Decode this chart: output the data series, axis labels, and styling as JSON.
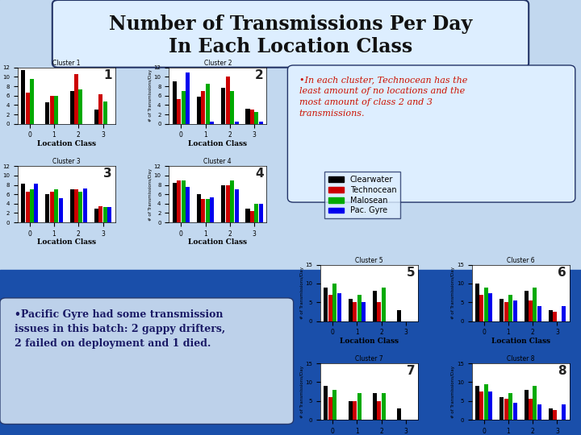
{
  "title_line1": "Number of Transmissions Per Day",
  "title_line2": "In Each Location Class",
  "bar_colors": [
    "#000000",
    "#cc0000",
    "#00aa00",
    "#0000ee"
  ],
  "legend_labels": [
    "Clearwater",
    "Technocean",
    "Malosean",
    "Pac. Gyre"
  ],
  "xlabel": "Location Class",
  "ylabel": "# of Transmissions/Day",
  "clusters": [
    {
      "title": "Cluster 1",
      "number": "1",
      "ylim": [
        0,
        12
      ],
      "yticks": [
        0,
        2,
        4,
        6,
        8,
        10,
        12
      ],
      "data": [
        [
          11.5,
          4.5,
          7.0,
          3.0
        ],
        [
          6.7,
          6.0,
          10.5,
          6.3
        ],
        [
          9.5,
          6.0,
          7.3,
          4.7
        ],
        [
          null,
          null,
          null,
          null
        ]
      ]
    },
    {
      "title": "Cluster 2",
      "number": "2",
      "ylim": [
        0,
        12
      ],
      "yticks": [
        0,
        2,
        4,
        6,
        8,
        10,
        12
      ],
      "data": [
        [
          9.0,
          5.7,
          7.7,
          3.2
        ],
        [
          5.3,
          7.0,
          10.0,
          3.0
        ],
        [
          7.0,
          8.5,
          7.0,
          2.5
        ],
        [
          11.0,
          0.5,
          0.5,
          0.5
        ]
      ]
    },
    {
      "title": "Cluster 3",
      "number": "3",
      "ylim": [
        0,
        12
      ],
      "yticks": [
        0,
        2,
        4,
        6,
        8,
        10,
        12
      ],
      "data": [
        [
          8.3,
          6.0,
          7.0,
          3.0
        ],
        [
          6.5,
          6.5,
          7.0,
          3.5
        ],
        [
          7.0,
          7.0,
          6.5,
          3.2
        ],
        [
          8.2,
          5.2,
          7.2,
          3.2
        ]
      ]
    },
    {
      "title": "Cluster 4",
      "number": "4",
      "ylim": [
        0,
        12
      ],
      "yticks": [
        0,
        2,
        4,
        6,
        8,
        10,
        12
      ],
      "data": [
        [
          8.5,
          6.0,
          8.0,
          3.0
        ],
        [
          9.0,
          5.0,
          8.0,
          2.5
        ],
        [
          9.0,
          5.0,
          9.0,
          4.0
        ],
        [
          7.5,
          5.3,
          7.0,
          4.0
        ]
      ]
    },
    {
      "title": "Cluster 5",
      "number": "5",
      "ylim": [
        0,
        15
      ],
      "yticks": [
        0,
        5,
        10,
        15
      ],
      "data": [
        [
          9.0,
          6.0,
          8.0,
          3.0
        ],
        [
          7.0,
          5.0,
          5.0,
          null
        ],
        [
          10.0,
          7.0,
          9.0,
          null
        ],
        [
          7.5,
          5.0,
          null,
          null
        ]
      ]
    },
    {
      "title": "Cluster 6",
      "number": "6",
      "ylim": [
        0,
        15
      ],
      "yticks": [
        0,
        5,
        10,
        15
      ],
      "data": [
        [
          10.0,
          6.0,
          8.0,
          3.0
        ],
        [
          7.0,
          5.0,
          5.5,
          2.5
        ],
        [
          9.0,
          7.0,
          9.0,
          null
        ],
        [
          7.5,
          5.5,
          4.0,
          4.0
        ]
      ]
    },
    {
      "title": "Cluster 7",
      "number": "7",
      "ylim": [
        0,
        15
      ],
      "yticks": [
        0,
        5,
        10,
        15
      ],
      "data": [
        [
          9.0,
          5.0,
          7.0,
          3.0
        ],
        [
          6.0,
          5.0,
          5.0,
          null
        ],
        [
          8.0,
          7.0,
          7.0,
          null
        ],
        [
          null,
          null,
          null,
          null
        ]
      ]
    },
    {
      "title": "Cluster 8",
      "number": "8",
      "ylim": [
        0,
        15
      ],
      "yticks": [
        0,
        5,
        10,
        15
      ],
      "data": [
        [
          9.0,
          6.0,
          8.0,
          3.0
        ],
        [
          7.5,
          5.5,
          5.5,
          2.5
        ],
        [
          9.5,
          7.0,
          9.0,
          null
        ],
        [
          7.5,
          4.5,
          4.0,
          4.0
        ]
      ]
    }
  ],
  "annotation_text": "•In each cluster, Technocean has the\nleast amount of no locations and the\nmost amount of class 2 and 3\ntransmissions.",
  "bottom_text": "•Pacific Gyre had some transmission\nissues in this batch: 2 gappy drifters,\n2 failed on deployment and 1 died."
}
